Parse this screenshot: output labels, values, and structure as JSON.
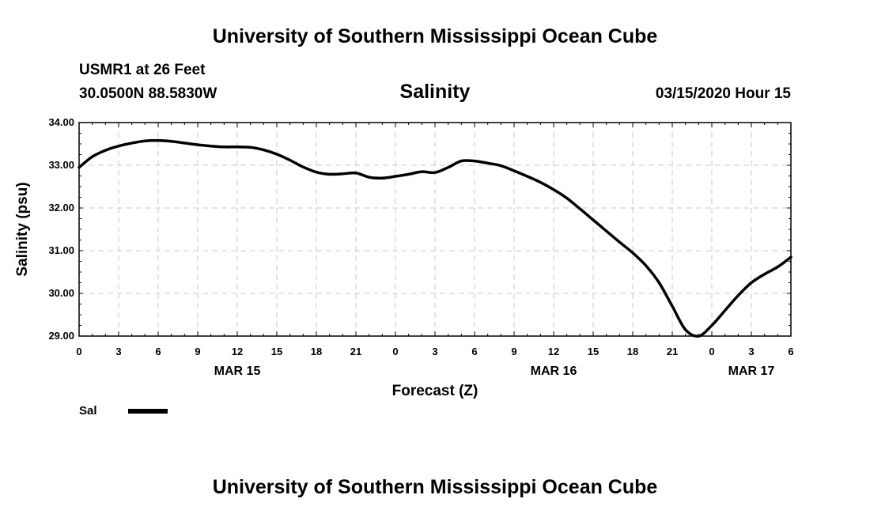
{
  "header": {
    "title": "University of Southern Mississippi Ocean Cube",
    "station": "USMR1 at 26 Feet",
    "coords": "30.0500N 88.5830W",
    "timestamp": "03/15/2020 Hour 15"
  },
  "footer": {
    "title": "University of Southern Mississippi Ocean Cube"
  },
  "colors": {
    "line": "#000000",
    "grid": "#c8c8c8",
    "frame": "#000000"
  },
  "chart_data": {
    "type": "line",
    "title": "Salinity",
    "xlabel": "Forecast (Z)",
    "ylabel": "Salinity (psu)",
    "ylim": [
      29.0,
      34.0
    ],
    "xlim": [
      0,
      54
    ],
    "x_unit": "hours since 03/15 00Z",
    "yticks": [
      "34.00",
      "33.00",
      "32.00",
      "31.00",
      "30.00",
      "29.00"
    ],
    "ytick_values": [
      34,
      33,
      32,
      31,
      30,
      29
    ],
    "xticks": [
      "0",
      "3",
      "6",
      "9",
      "12",
      "15",
      "18",
      "21",
      "0",
      "3",
      "6",
      "9",
      "12",
      "15",
      "18",
      "21",
      "0",
      "3",
      "6"
    ],
    "xtick_hours": [
      0,
      3,
      6,
      9,
      12,
      15,
      18,
      21,
      24,
      27,
      30,
      33,
      36,
      39,
      42,
      45,
      48,
      51,
      54
    ],
    "date_labels": [
      {
        "label": "MAR 15",
        "hour": 12
      },
      {
        "label": "MAR 16",
        "hour": 36
      },
      {
        "label": "MAR 17",
        "hour": 51
      }
    ],
    "grid": true,
    "legend": {
      "position": "bottom-left",
      "entries": [
        {
          "name": "Sal"
        }
      ]
    },
    "series": [
      {
        "name": "Sal",
        "x": [
          0,
          1,
          2,
          3,
          4,
          5,
          6,
          7,
          8,
          9,
          10,
          11,
          12,
          13,
          14,
          15,
          16,
          17,
          18,
          19,
          20,
          21,
          22,
          23,
          24,
          25,
          26,
          27,
          28,
          29,
          30,
          31,
          32,
          33,
          34,
          35,
          36,
          37,
          38,
          39,
          40,
          41,
          42,
          43,
          44,
          45,
          46,
          47,
          48,
          49,
          50,
          51,
          52,
          53,
          54
        ],
        "values": [
          32.95,
          33.2,
          33.35,
          33.45,
          33.52,
          33.57,
          33.58,
          33.56,
          33.52,
          33.48,
          33.45,
          33.43,
          33.43,
          33.42,
          33.36,
          33.26,
          33.12,
          32.96,
          32.84,
          32.79,
          32.8,
          32.82,
          32.72,
          32.7,
          32.74,
          32.79,
          32.85,
          32.83,
          32.95,
          33.1,
          33.1,
          33.05,
          32.99,
          32.87,
          32.74,
          32.6,
          32.43,
          32.23,
          31.98,
          31.72,
          31.46,
          31.2,
          30.95,
          30.65,
          30.25,
          29.7,
          29.15,
          29.0,
          29.25,
          29.6,
          29.95,
          30.25,
          30.45,
          30.62,
          30.85
        ]
      }
    ]
  }
}
